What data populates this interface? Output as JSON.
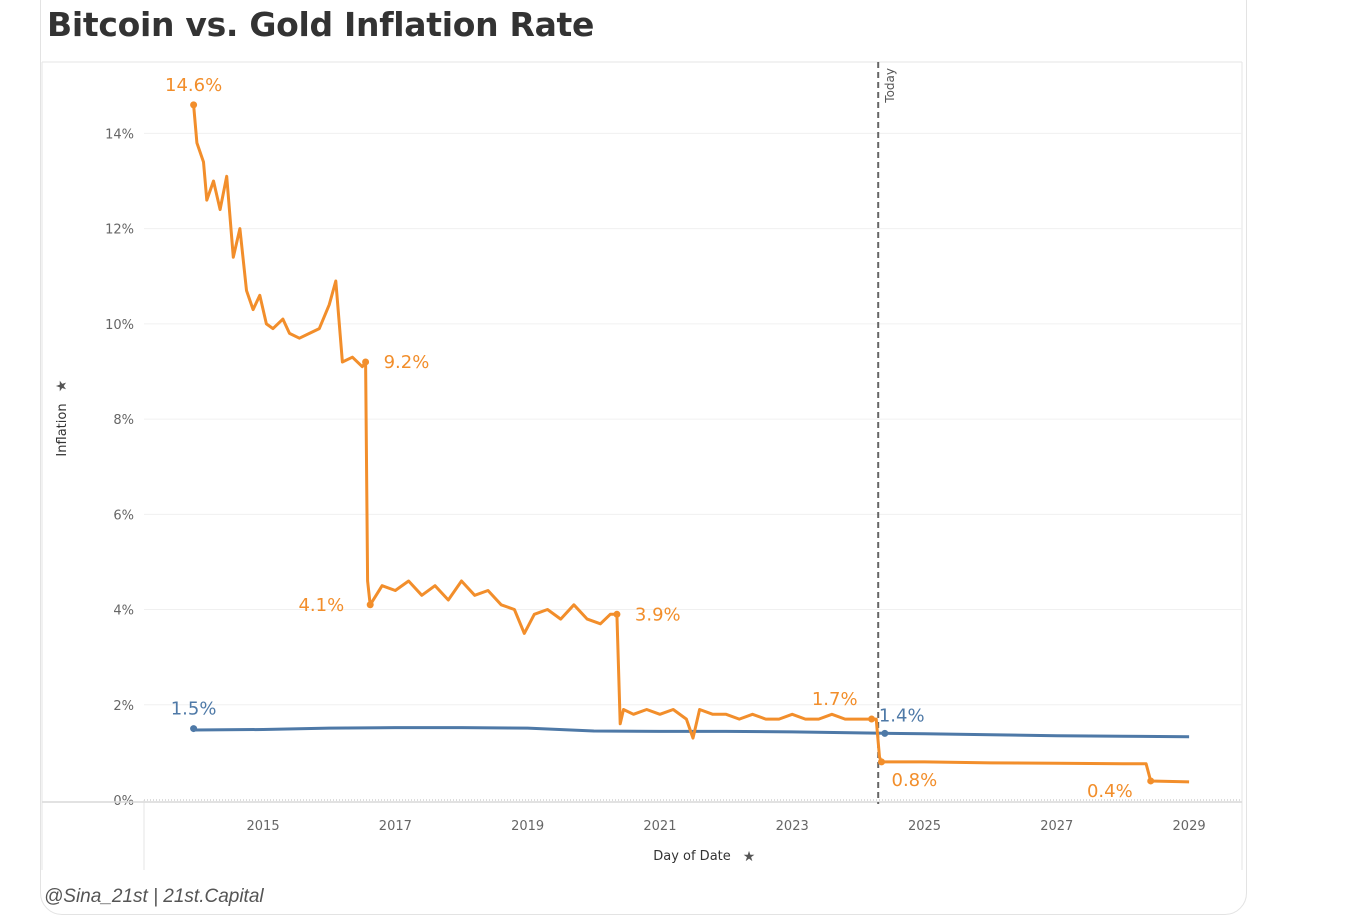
{
  "chart_data": {
    "type": "line",
    "title": "Bitcoin vs. Gold Inflation Rate",
    "ylabel": "Inflation",
    "xlabel": "Day of Date",
    "ylim": [
      0,
      15.5
    ],
    "xlim": [
      2013.2,
      2029.8
    ],
    "y_ticks": [
      {
        "v": 0,
        "label": "0%"
      },
      {
        "v": 2,
        "label": "2%"
      },
      {
        "v": 4,
        "label": "4%"
      },
      {
        "v": 6,
        "label": "6%"
      },
      {
        "v": 8,
        "label": "8%"
      },
      {
        "v": 10,
        "label": "10%"
      },
      {
        "v": 12,
        "label": "12%"
      },
      {
        "v": 14,
        "label": "14%"
      }
    ],
    "x_ticks": [
      {
        "v": 2015,
        "label": "2015"
      },
      {
        "v": 2017,
        "label": "2017"
      },
      {
        "v": 2019,
        "label": "2019"
      },
      {
        "v": 2021,
        "label": "2021"
      },
      {
        "v": 2023,
        "label": "2023"
      },
      {
        "v": 2025,
        "label": "2025"
      },
      {
        "v": 2027,
        "label": "2027"
      },
      {
        "v": 2029,
        "label": "2029"
      }
    ],
    "reference_line": {
      "x": 2024.3,
      "label": "Today"
    },
    "series": [
      {
        "name": "Bitcoin",
        "color": "#f28e2b",
        "points": [
          [
            2013.95,
            14.6
          ],
          [
            2014.0,
            13.8
          ],
          [
            2014.1,
            13.4
          ],
          [
            2014.15,
            12.6
          ],
          [
            2014.25,
            13.0
          ],
          [
            2014.35,
            12.4
          ],
          [
            2014.45,
            13.1
          ],
          [
            2014.55,
            11.4
          ],
          [
            2014.65,
            12.0
          ],
          [
            2014.75,
            10.7
          ],
          [
            2014.85,
            10.3
          ],
          [
            2014.95,
            10.6
          ],
          [
            2015.05,
            10.0
          ],
          [
            2015.15,
            9.9
          ],
          [
            2015.3,
            10.1
          ],
          [
            2015.4,
            9.8
          ],
          [
            2015.55,
            9.7
          ],
          [
            2015.7,
            9.8
          ],
          [
            2015.85,
            9.9
          ],
          [
            2016.0,
            10.4
          ],
          [
            2016.1,
            10.9
          ],
          [
            2016.2,
            9.2
          ],
          [
            2016.35,
            9.3
          ],
          [
            2016.5,
            9.1
          ],
          [
            2016.55,
            9.2
          ],
          [
            2016.58,
            4.6
          ],
          [
            2016.62,
            4.1
          ],
          [
            2016.8,
            4.5
          ],
          [
            2017.0,
            4.4
          ],
          [
            2017.2,
            4.6
          ],
          [
            2017.4,
            4.3
          ],
          [
            2017.6,
            4.5
          ],
          [
            2017.8,
            4.2
          ],
          [
            2018.0,
            4.6
          ],
          [
            2018.2,
            4.3
          ],
          [
            2018.4,
            4.4
          ],
          [
            2018.6,
            4.1
          ],
          [
            2018.8,
            4.0
          ],
          [
            2018.95,
            3.5
          ],
          [
            2019.1,
            3.9
          ],
          [
            2019.3,
            4.0
          ],
          [
            2019.5,
            3.8
          ],
          [
            2019.7,
            4.1
          ],
          [
            2019.9,
            3.8
          ],
          [
            2020.1,
            3.7
          ],
          [
            2020.25,
            3.9
          ],
          [
            2020.35,
            3.9
          ],
          [
            2020.4,
            1.6
          ],
          [
            2020.45,
            1.9
          ],
          [
            2020.6,
            1.8
          ],
          [
            2020.8,
            1.9
          ],
          [
            2021.0,
            1.8
          ],
          [
            2021.2,
            1.9
          ],
          [
            2021.4,
            1.7
          ],
          [
            2021.5,
            1.3
          ],
          [
            2021.6,
            1.9
          ],
          [
            2021.8,
            1.8
          ],
          [
            2022.0,
            1.8
          ],
          [
            2022.2,
            1.7
          ],
          [
            2022.4,
            1.8
          ],
          [
            2022.6,
            1.7
          ],
          [
            2022.8,
            1.7
          ],
          [
            2023.0,
            1.8
          ],
          [
            2023.2,
            1.7
          ],
          [
            2023.4,
            1.7
          ],
          [
            2023.6,
            1.8
          ],
          [
            2023.8,
            1.7
          ],
          [
            2024.0,
            1.7
          ],
          [
            2024.2,
            1.7
          ],
          [
            2024.27,
            1.7
          ],
          [
            2024.32,
            0.9
          ],
          [
            2024.35,
            0.8
          ],
          [
            2025.0,
            0.8
          ],
          [
            2026.0,
            0.78
          ],
          [
            2027.0,
            0.77
          ],
          [
            2028.0,
            0.76
          ],
          [
            2028.35,
            0.76
          ],
          [
            2028.42,
            0.4
          ],
          [
            2029.0,
            0.38
          ]
        ],
        "labels": [
          {
            "x": 2013.95,
            "y": 14.6,
            "text": "14.6%",
            "pos": "above"
          },
          {
            "x": 2016.55,
            "y": 9.2,
            "text": "9.2%",
            "pos": "right"
          },
          {
            "x": 2016.62,
            "y": 4.1,
            "text": "4.1%",
            "pos": "left"
          },
          {
            "x": 2020.35,
            "y": 3.9,
            "text": "3.9%",
            "pos": "right"
          },
          {
            "x": 2024.2,
            "y": 1.7,
            "text": "1.7%",
            "pos": "aboveleft"
          },
          {
            "x": 2024.35,
            "y": 0.8,
            "text": "0.8%",
            "pos": "below"
          },
          {
            "x": 2028.42,
            "y": 0.4,
            "text": "0.4%",
            "pos": "belowleft"
          }
        ]
      },
      {
        "name": "Gold",
        "color": "#4e79a7",
        "points": [
          [
            2013.95,
            1.47
          ],
          [
            2015.0,
            1.48
          ],
          [
            2016.0,
            1.51
          ],
          [
            2017.0,
            1.52
          ],
          [
            2018.0,
            1.52
          ],
          [
            2019.0,
            1.51
          ],
          [
            2020.0,
            1.45
          ],
          [
            2021.0,
            1.44
          ],
          [
            2022.0,
            1.44
          ],
          [
            2023.0,
            1.43
          ],
          [
            2024.0,
            1.41
          ],
          [
            2024.4,
            1.4
          ],
          [
            2025.0,
            1.39
          ],
          [
            2026.0,
            1.37
          ],
          [
            2027.0,
            1.35
          ],
          [
            2028.0,
            1.34
          ],
          [
            2029.0,
            1.33
          ]
        ],
        "labels": [
          {
            "x": 2013.95,
            "y": 1.5,
            "text": "1.5%",
            "pos": "above"
          },
          {
            "x": 2024.4,
            "y": 1.4,
            "text": "1.4%",
            "pos": "aboveright"
          }
        ]
      }
    ]
  },
  "footer": {
    "credit": "@Sina_21st | 21st.Capital"
  }
}
